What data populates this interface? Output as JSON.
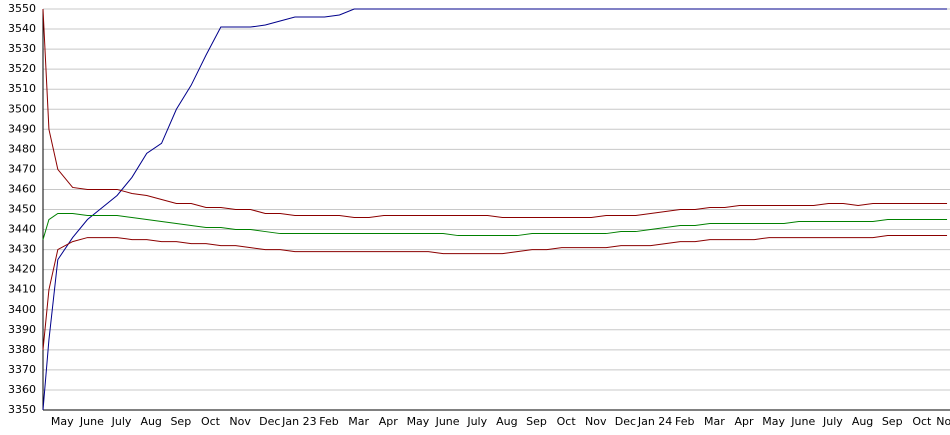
{
  "chart_data": {
    "type": "line",
    "x": [
      0,
      0.2,
      0.5,
      1,
      1.5,
      2,
      2.5,
      3,
      3.5,
      4,
      4.5,
      5,
      5.5,
      6,
      6.5,
      7,
      7.5,
      8,
      8.5,
      9,
      9.5,
      10,
      10.5,
      11,
      11.5,
      12,
      12.5,
      13,
      13.5,
      14,
      14.5,
      15,
      15.5,
      16,
      16.5,
      17,
      17.5,
      18,
      18.5,
      19,
      19.5,
      20,
      20.5,
      21,
      21.5,
      22,
      22.5,
      23,
      23.5,
      24,
      24.5,
      25,
      25.5,
      26,
      26.5,
      27,
      27.5,
      28,
      28.5,
      29,
      29.5,
      30,
      30.5
    ],
    "series": [
      {
        "color": "#00008b",
        "values": [
          3350,
          3385,
          3425,
          3436,
          3445,
          3451,
          3457,
          3466,
          3478,
          3483,
          3500,
          3512,
          3527,
          3541,
          3541,
          3541,
          3542,
          3544,
          3546,
          3546,
          3546,
          3547,
          3550,
          3550,
          3550,
          3550,
          3550,
          3550,
          3550,
          3550,
          3550,
          3550,
          3550,
          3550,
          3550,
          3550,
          3550,
          3550,
          3550,
          3550,
          3550,
          3550,
          3550,
          3550,
          3550,
          3550,
          3550,
          3550,
          3550,
          3550,
          3550,
          3550,
          3550,
          3550,
          3550,
          3550,
          3550,
          3550,
          3550,
          3550,
          3550,
          3550,
          3550
        ]
      },
      {
        "color": "#8b0000",
        "values": [
          3550,
          3490,
          3470,
          3461,
          3460,
          3460,
          3460,
          3458,
          3457,
          3455,
          3453,
          3453,
          3451,
          3451,
          3450,
          3450,
          3448,
          3448,
          3447,
          3447,
          3447,
          3447,
          3446,
          3446,
          3447,
          3447,
          3447,
          3447,
          3447,
          3447,
          3447,
          3447,
          3446,
          3446,
          3446,
          3446,
          3446,
          3446,
          3446,
          3447,
          3447,
          3447,
          3448,
          3449,
          3450,
          3450,
          3451,
          3451,
          3452,
          3452,
          3452,
          3452,
          3452,
          3452,
          3453,
          3453,
          3452,
          3453,
          3453,
          3453,
          3453,
          3453,
          3453
        ]
      },
      {
        "color": "#008000",
        "values": [
          3435,
          3445,
          3448,
          3448,
          3447,
          3447,
          3447,
          3446,
          3445,
          3444,
          3443,
          3442,
          3441,
          3441,
          3440,
          3440,
          3439,
          3438,
          3438,
          3438,
          3438,
          3438,
          3438,
          3438,
          3438,
          3438,
          3438,
          3438,
          3438,
          3437,
          3437,
          3437,
          3437,
          3437,
          3438,
          3438,
          3438,
          3438,
          3438,
          3438,
          3439,
          3439,
          3440,
          3441,
          3442,
          3442,
          3443,
          3443,
          3443,
          3443,
          3443,
          3443,
          3444,
          3444,
          3444,
          3444,
          3444,
          3444,
          3445,
          3445,
          3445,
          3445,
          3445
        ]
      },
      {
        "color": "#8b0000",
        "values": [
          3380,
          3410,
          3430,
          3434,
          3436,
          3436,
          3436,
          3435,
          3435,
          3434,
          3434,
          3433,
          3433,
          3432,
          3432,
          3431,
          3430,
          3430,
          3429,
          3429,
          3429,
          3429,
          3429,
          3429,
          3429,
          3429,
          3429,
          3429,
          3428,
          3428,
          3428,
          3428,
          3428,
          3429,
          3430,
          3430,
          3431,
          3431,
          3431,
          3431,
          3432,
          3432,
          3432,
          3433,
          3434,
          3434,
          3435,
          3435,
          3435,
          3435,
          3436,
          3436,
          3436,
          3436,
          3436,
          3436,
          3436,
          3436,
          3437,
          3437,
          3437,
          3437,
          3437
        ]
      }
    ],
    "xlim": [
      0,
      30.6
    ],
    "xticks": [
      {
        "value": 0.65,
        "label": "May"
      },
      {
        "value": 1.65,
        "label": "June"
      },
      {
        "value": 2.65,
        "label": "July"
      },
      {
        "value": 3.65,
        "label": "Aug"
      },
      {
        "value": 4.65,
        "label": "Sep"
      },
      {
        "value": 5.65,
        "label": "Oct"
      },
      {
        "value": 6.65,
        "label": "Nov"
      },
      {
        "value": 7.65,
        "label": "Dec"
      },
      {
        "value": 8.65,
        "label": "Jan 23"
      },
      {
        "value": 9.65,
        "label": "Feb"
      },
      {
        "value": 10.65,
        "label": "Mar"
      },
      {
        "value": 11.65,
        "label": "Apr"
      },
      {
        "value": 12.65,
        "label": "May"
      },
      {
        "value": 13.65,
        "label": "June"
      },
      {
        "value": 14.65,
        "label": "July"
      },
      {
        "value": 15.65,
        "label": "Aug"
      },
      {
        "value": 16.65,
        "label": "Sep"
      },
      {
        "value": 17.65,
        "label": "Oct"
      },
      {
        "value": 18.65,
        "label": "Nov"
      },
      {
        "value": 19.65,
        "label": "Dec"
      },
      {
        "value": 20.65,
        "label": "Jan 24"
      },
      {
        "value": 21.65,
        "label": "Feb"
      },
      {
        "value": 22.65,
        "label": "Mar"
      },
      {
        "value": 23.65,
        "label": "Apr"
      },
      {
        "value": 24.65,
        "label": "May"
      },
      {
        "value": 25.65,
        "label": "June"
      },
      {
        "value": 26.65,
        "label": "July"
      },
      {
        "value": 27.65,
        "label": "Aug"
      },
      {
        "value": 28.65,
        "label": "Sep"
      },
      {
        "value": 29.65,
        "label": "Oct"
      },
      {
        "value": 30.5,
        "label": "Nov"
      }
    ],
    "ylim": [
      3350,
      3550
    ],
    "yticks": [
      3350,
      3360,
      3370,
      3380,
      3390,
      3400,
      3410,
      3420,
      3430,
      3440,
      3450,
      3460,
      3470,
      3480,
      3490,
      3500,
      3510,
      3520,
      3530,
      3540,
      3550
    ],
    "grid": true
  }
}
